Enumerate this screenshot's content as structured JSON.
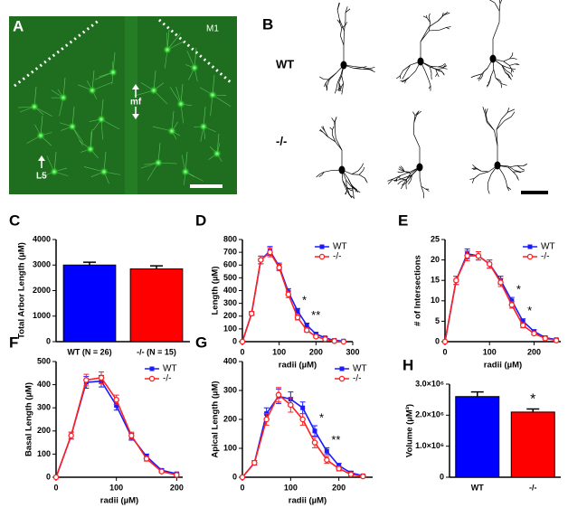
{
  "figure": {
    "panel_a": {
      "letter": "A",
      "region": "M1",
      "midline": "mf",
      "layer": "L5"
    },
    "panel_b": {
      "letter": "B",
      "rows": [
        "WT",
        "-/-"
      ]
    }
  },
  "chart_data": [
    {
      "panel": "C",
      "type": "bar",
      "ylabel": "Total Arbor Length (µM)",
      "categories": [
        "WT (N = 26)",
        "-/- (N = 15)"
      ],
      "values": [
        3000,
        2850
      ],
      "errors": [
        110,
        120
      ],
      "colors": [
        "#0000ff",
        "#ff0000"
      ],
      "ylim": [
        0,
        4000
      ],
      "yticks": [
        0,
        1000,
        2000,
        3000,
        4000
      ]
    },
    {
      "panel": "D",
      "type": "line",
      "ylabel": "Length (µM)",
      "xlabel": "radii (µM)",
      "x": [
        0,
        25,
        50,
        75,
        100,
        125,
        150,
        175,
        200,
        225,
        250,
        275
      ],
      "series": [
        {
          "name": "WT",
          "color": "#1a1aff",
          "marker": "square",
          "values": [
            0,
            220,
            640,
            710,
            590,
            390,
            240,
            130,
            60,
            30,
            10,
            5
          ],
          "errors": [
            0,
            15,
            30,
            35,
            25,
            25,
            20,
            15,
            10,
            8,
            5,
            3
          ]
        },
        {
          "name": "-/-",
          "color": "#ff2020",
          "marker": "circle",
          "values": [
            0,
            220,
            640,
            700,
            580,
            370,
            190,
            90,
            40,
            20,
            5,
            0
          ],
          "errors": [
            0,
            15,
            30,
            35,
            25,
            25,
            20,
            15,
            10,
            8,
            5,
            3
          ]
        }
      ],
      "xlim": [
        0,
        300
      ],
      "xticks": [
        0,
        100,
        200,
        300
      ],
      "ylim": [
        0,
        800
      ],
      "yticks": [
        0,
        100,
        200,
        300,
        400,
        500,
        600,
        700,
        800
      ],
      "legend": "upper right",
      "annotations": [
        {
          "text": "*",
          "x": 150
        },
        {
          "text": "**",
          "x": 175
        }
      ]
    },
    {
      "panel": "E",
      "type": "line",
      "ylabel": "# of Intersections",
      "xlabel": "radii (µM)",
      "x": [
        0,
        25,
        50,
        75,
        100,
        125,
        150,
        175,
        200,
        225,
        250
      ],
      "series": [
        {
          "name": "WT",
          "color": "#1a1aff",
          "marker": "square",
          "values": [
            0,
            15,
            21.5,
            21,
            19,
            15,
            10,
            5,
            2.5,
            1,
            0.5
          ],
          "errors": [
            0,
            1,
            1.2,
            1,
            1,
            1,
            0.8,
            0.6,
            0.4,
            0.3,
            0.2
          ]
        },
        {
          "name": "-/-",
          "color": "#ff2020",
          "marker": "circle",
          "values": [
            0,
            15,
            21,
            21,
            19,
            14.5,
            9,
            4,
            2,
            0.8,
            0.3
          ],
          "errors": [
            0,
            1,
            1.2,
            1,
            1,
            1,
            0.8,
            0.6,
            0.4,
            0.3,
            0.2
          ]
        }
      ],
      "xlim": [
        0,
        260
      ],
      "xticks": [
        0,
        100,
        200
      ],
      "ylim": [
        0,
        25
      ],
      "yticks": [
        0,
        5,
        10,
        15,
        20,
        25
      ],
      "legend": "upper right",
      "annotations": [
        {
          "text": "*",
          "x": 150
        },
        {
          "text": "*",
          "x": 175
        }
      ]
    },
    {
      "panel": "F",
      "type": "line",
      "ylabel": "Basal Length (µM)",
      "xlabel": "radii (µM)",
      "x": [
        0,
        25,
        50,
        75,
        100,
        125,
        150,
        175,
        200
      ],
      "series": [
        {
          "name": "WT",
          "color": "#1a1aff",
          "marker": "square",
          "values": [
            0,
            180,
            410,
            415,
            310,
            175,
            90,
            30,
            15
          ],
          "errors": [
            0,
            15,
            25,
            25,
            20,
            15,
            10,
            6,
            4
          ]
        },
        {
          "name": "-/-",
          "color": "#ff2020",
          "marker": "circle",
          "values": [
            0,
            180,
            420,
            430,
            335,
            180,
            80,
            25,
            10
          ],
          "errors": [
            0,
            15,
            25,
            25,
            20,
            15,
            10,
            6,
            4
          ]
        }
      ],
      "xlim": [
        0,
        210
      ],
      "xticks": [
        0,
        100,
        200
      ],
      "ylim": [
        0,
        500
      ],
      "yticks": [
        0,
        100,
        200,
        300,
        400,
        500
      ],
      "legend": "upper right",
      "annotations": []
    },
    {
      "panel": "G",
      "type": "line",
      "ylabel": "Apical Length (µM)",
      "xlabel": "radii (µM)",
      "x": [
        0,
        25,
        50,
        75,
        100,
        125,
        150,
        175,
        200,
        225,
        250
      ],
      "series": [
        {
          "name": "WT",
          "color": "#1a1aff",
          "marker": "square",
          "values": [
            0,
            50,
            220,
            280,
            270,
            240,
            160,
            90,
            40,
            15,
            5
          ],
          "errors": [
            0,
            8,
            20,
            25,
            25,
            20,
            18,
            12,
            8,
            5,
            3
          ]
        },
        {
          "name": "-/-",
          "color": "#ff2020",
          "marker": "circle",
          "values": [
            0,
            50,
            200,
            285,
            250,
            200,
            120,
            60,
            30,
            10,
            3
          ],
          "errors": [
            0,
            8,
            20,
            25,
            25,
            20,
            18,
            12,
            8,
            5,
            3
          ]
        }
      ],
      "xlim": [
        0,
        270
      ],
      "xticks": [
        0,
        100,
        200
      ],
      "ylim": [
        0,
        400
      ],
      "yticks": [
        0,
        100,
        200,
        300,
        400
      ],
      "legend": "upper right",
      "annotations": [
        {
          "text": "*",
          "x": 150
        },
        {
          "text": "**",
          "x": 175
        }
      ]
    },
    {
      "panel": "H",
      "type": "bar",
      "ylabel": "Volume (µM³)",
      "categories": [
        "WT",
        "-/-"
      ],
      "values": [
        2600000,
        2100000
      ],
      "errors": [
        150000,
        100000
      ],
      "colors": [
        "#0000ff",
        "#ff0000"
      ],
      "ylim": [
        0,
        3000000
      ],
      "yticks": [
        0,
        {
          "value": 1000000,
          "label": "1.0×10⁶"
        },
        {
          "value": 2000000,
          "label": "2.0×10⁶"
        },
        {
          "value": 3000000,
          "label": "3.0×10⁶"
        }
      ],
      "annotations": [
        {
          "text": "*",
          "x": 1
        }
      ]
    }
  ]
}
